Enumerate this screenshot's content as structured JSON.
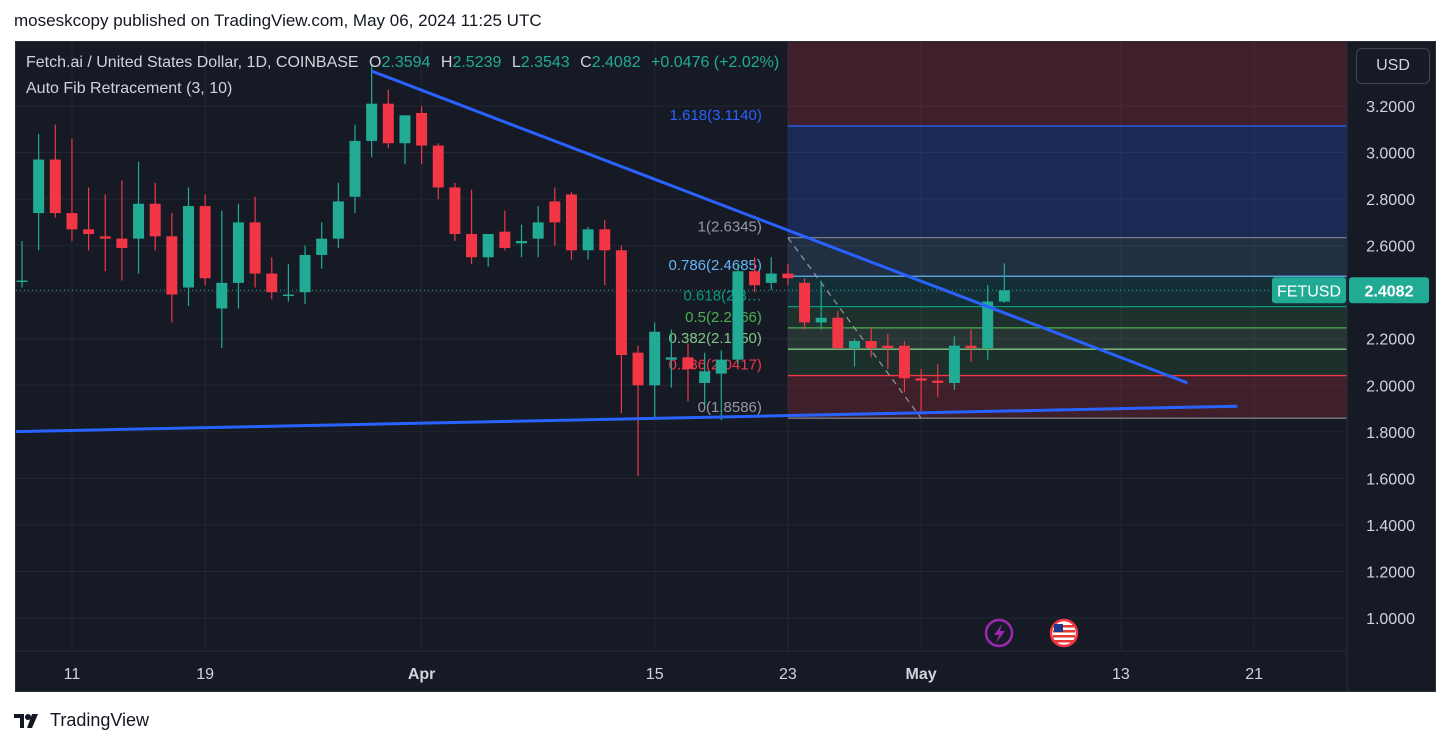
{
  "publish_line": "moseskcopy published on TradingView.com, May 06, 2024 11:25 UTC",
  "legend": {
    "title": "Fetch.ai / United States Dollar, 1D, COINBASE",
    "open_label": "O",
    "open": "2.3594",
    "high_label": "H",
    "high": "2.5239",
    "low_label": "L",
    "low": "2.3543",
    "close_label": "C",
    "close": "2.4082",
    "change": "+0.0476 (+2.02%)"
  },
  "indicator": "Auto Fib Retracement (3, 10)",
  "currency_button": "USD",
  "footer": {
    "brand": "TradingView"
  },
  "colors": {
    "background": "#161a25",
    "up": "#22ab94",
    "down": "#f23645",
    "trendline": "#2962ff",
    "grid": "#232733",
    "axis_text": "#d1d4dc"
  },
  "icons": [
    "lightning-icon",
    "us-flag-icon",
    "tradingview-logo-icon"
  ],
  "chart_data": {
    "type": "candlestick",
    "symbol": "FETUSD",
    "last_price": 2.4082,
    "y_ticks": [
      "3.2000",
      "3.0000",
      "2.8000",
      "2.6000",
      "2.4000",
      "2.2000",
      "2.0000",
      "1.8000",
      "1.6000",
      "1.4000",
      "1.2000",
      "1.0000"
    ],
    "ylim": [
      0.85,
      3.3
    ],
    "x_tick_labels": [
      {
        "label": "11",
        "date": "2024-03-11"
      },
      {
        "label": "19",
        "date": "2024-03-19"
      },
      {
        "label": "Apr",
        "date": "2024-04-01"
      },
      {
        "label": "15",
        "date": "2024-04-15"
      },
      {
        "label": "23",
        "date": "2024-04-23"
      },
      {
        "label": "May",
        "date": "2024-05-01"
      },
      {
        "label": "13",
        "date": "2024-05-13"
      },
      {
        "label": "21",
        "date": "2024-05-21"
      }
    ],
    "x_start": "2024-03-08",
    "candles": [
      {
        "date": "2024-03-08",
        "o": 2.45,
        "h": 2.62,
        "l": 2.42,
        "c": 2.45
      },
      {
        "date": "2024-03-09",
        "o": 2.74,
        "h": 3.08,
        "l": 2.58,
        "c": 2.97
      },
      {
        "date": "2024-03-10",
        "o": 2.97,
        "h": 3.12,
        "l": 2.72,
        "c": 2.74
      },
      {
        "date": "2024-03-11",
        "o": 2.74,
        "h": 3.06,
        "l": 2.62,
        "c": 2.67
      },
      {
        "date": "2024-03-12",
        "o": 2.67,
        "h": 2.85,
        "l": 2.58,
        "c": 2.65
      },
      {
        "date": "2024-03-13",
        "o": 2.64,
        "h": 2.82,
        "l": 2.49,
        "c": 2.63
      },
      {
        "date": "2024-03-14",
        "o": 2.63,
        "h": 2.88,
        "l": 2.45,
        "c": 2.59
      },
      {
        "date": "2024-03-15",
        "o": 2.63,
        "h": 2.96,
        "l": 2.48,
        "c": 2.78
      },
      {
        "date": "2024-03-16",
        "o": 2.78,
        "h": 2.87,
        "l": 2.58,
        "c": 2.64
      },
      {
        "date": "2024-03-17",
        "o": 2.64,
        "h": 2.74,
        "l": 2.27,
        "c": 2.39
      },
      {
        "date": "2024-03-18",
        "o": 2.42,
        "h": 2.85,
        "l": 2.34,
        "c": 2.77
      },
      {
        "date": "2024-03-19",
        "o": 2.77,
        "h": 2.82,
        "l": 2.43,
        "c": 2.46
      },
      {
        "date": "2024-03-20",
        "o": 2.33,
        "h": 2.75,
        "l": 2.16,
        "c": 2.44
      },
      {
        "date": "2024-03-21",
        "o": 2.44,
        "h": 2.78,
        "l": 2.33,
        "c": 2.7
      },
      {
        "date": "2024-03-22",
        "o": 2.7,
        "h": 2.81,
        "l": 2.42,
        "c": 2.48
      },
      {
        "date": "2024-03-23",
        "o": 2.48,
        "h": 2.55,
        "l": 2.37,
        "c": 2.4
      },
      {
        "date": "2024-03-24",
        "o": 2.39,
        "h": 2.52,
        "l": 2.36,
        "c": 2.39
      },
      {
        "date": "2024-03-25",
        "o": 2.4,
        "h": 2.6,
        "l": 2.35,
        "c": 2.56
      },
      {
        "date": "2024-03-26",
        "o": 2.56,
        "h": 2.7,
        "l": 2.5,
        "c": 2.63
      },
      {
        "date": "2024-03-27",
        "o": 2.63,
        "h": 2.87,
        "l": 2.59,
        "c": 2.79
      },
      {
        "date": "2024-03-28",
        "o": 2.81,
        "h": 3.12,
        "l": 2.74,
        "c": 3.05
      },
      {
        "date": "2024-03-29",
        "o": 3.05,
        "h": 3.38,
        "l": 2.98,
        "c": 3.21
      },
      {
        "date": "2024-03-30",
        "o": 3.21,
        "h": 3.27,
        "l": 3.02,
        "c": 3.04
      },
      {
        "date": "2024-03-31",
        "o": 3.04,
        "h": 3.16,
        "l": 2.95,
        "c": 3.16
      },
      {
        "date": "2024-04-01",
        "o": 3.17,
        "h": 3.2,
        "l": 2.95,
        "c": 3.03
      },
      {
        "date": "2024-04-02",
        "o": 3.03,
        "h": 3.04,
        "l": 2.8,
        "c": 2.85
      },
      {
        "date": "2024-04-03",
        "o": 2.85,
        "h": 2.87,
        "l": 2.62,
        "c": 2.65
      },
      {
        "date": "2024-04-04",
        "o": 2.65,
        "h": 2.84,
        "l": 2.52,
        "c": 2.55
      },
      {
        "date": "2024-04-05",
        "o": 2.55,
        "h": 2.65,
        "l": 2.51,
        "c": 2.65
      },
      {
        "date": "2024-04-06",
        "o": 2.66,
        "h": 2.75,
        "l": 2.58,
        "c": 2.59
      },
      {
        "date": "2024-04-07",
        "o": 2.61,
        "h": 2.69,
        "l": 2.55,
        "c": 2.62
      },
      {
        "date": "2024-04-08",
        "o": 2.63,
        "h": 2.77,
        "l": 2.55,
        "c": 2.7
      },
      {
        "date": "2024-04-09",
        "o": 2.79,
        "h": 2.85,
        "l": 2.6,
        "c": 2.7
      },
      {
        "date": "2024-04-10",
        "o": 2.82,
        "h": 2.83,
        "l": 2.54,
        "c": 2.58
      },
      {
        "date": "2024-04-11",
        "o": 2.58,
        "h": 2.68,
        "l": 2.54,
        "c": 2.67
      },
      {
        "date": "2024-04-12",
        "o": 2.67,
        "h": 2.71,
        "l": 2.43,
        "c": 2.58
      },
      {
        "date": "2024-04-13",
        "o": 2.58,
        "h": 2.6,
        "l": 1.88,
        "c": 2.13
      },
      {
        "date": "2024-04-14",
        "o": 2.14,
        "h": 2.17,
        "l": 1.61,
        "c": 2.0
      },
      {
        "date": "2024-04-15",
        "o": 2.0,
        "h": 2.27,
        "l": 1.86,
        "c": 2.23
      },
      {
        "date": "2024-04-16",
        "o": 2.11,
        "h": 2.24,
        "l": 1.99,
        "c": 2.12
      },
      {
        "date": "2024-04-17",
        "o": 2.12,
        "h": 2.18,
        "l": 1.93,
        "c": 2.07
      },
      {
        "date": "2024-04-18",
        "o": 2.01,
        "h": 2.14,
        "l": 1.91,
        "c": 2.06
      },
      {
        "date": "2024-04-19",
        "o": 2.05,
        "h": 2.15,
        "l": 1.85,
        "c": 2.11
      },
      {
        "date": "2024-04-20",
        "o": 2.11,
        "h": 2.52,
        "l": 2.09,
        "c": 2.49
      },
      {
        "date": "2024-04-21",
        "o": 2.49,
        "h": 2.55,
        "l": 2.4,
        "c": 2.43
      },
      {
        "date": "2024-04-22",
        "o": 2.44,
        "h": 2.55,
        "l": 2.41,
        "c": 2.48
      },
      {
        "date": "2024-04-23",
        "o": 2.48,
        "h": 2.52,
        "l": 2.43,
        "c": 2.46
      },
      {
        "date": "2024-04-24",
        "o": 2.44,
        "h": 2.46,
        "l": 2.24,
        "c": 2.27
      },
      {
        "date": "2024-04-25",
        "o": 2.27,
        "h": 2.45,
        "l": 2.24,
        "c": 2.29
      },
      {
        "date": "2024-04-26",
        "o": 2.29,
        "h": 2.32,
        "l": 2.15,
        "c": 2.16
      },
      {
        "date": "2024-04-27",
        "o": 2.16,
        "h": 2.2,
        "l": 2.08,
        "c": 2.19
      },
      {
        "date": "2024-04-28",
        "o": 2.19,
        "h": 2.25,
        "l": 2.12,
        "c": 2.16
      },
      {
        "date": "2024-04-29",
        "o": 2.17,
        "h": 2.22,
        "l": 2.07,
        "c": 2.16
      },
      {
        "date": "2024-04-30",
        "o": 2.17,
        "h": 2.19,
        "l": 1.97,
        "c": 2.03
      },
      {
        "date": "2024-05-01",
        "o": 2.03,
        "h": 2.07,
        "l": 1.88,
        "c": 2.02
      },
      {
        "date": "2024-05-02",
        "o": 2.02,
        "h": 2.09,
        "l": 1.95,
        "c": 2.01
      },
      {
        "date": "2024-05-03",
        "o": 2.01,
        "h": 2.21,
        "l": 1.98,
        "c": 2.17
      },
      {
        "date": "2024-05-04",
        "o": 2.17,
        "h": 2.24,
        "l": 2.1,
        "c": 2.16
      },
      {
        "date": "2024-05-05",
        "o": 2.16,
        "h": 2.43,
        "l": 2.11,
        "c": 2.36
      },
      {
        "date": "2024-05-06",
        "o": 2.3594,
        "h": 2.5239,
        "l": 2.3543,
        "c": 2.4082
      }
    ],
    "fib_levels": [
      {
        "label": "1.618(3.1140)",
        "ratio": 1.618,
        "price": 3.114,
        "color": "#2962ff",
        "text_color": "#2962ff"
      },
      {
        "label": "1(2.6345)",
        "ratio": 1,
        "price": 2.6345,
        "color": "#787b86",
        "text_color": "#9598a1"
      },
      {
        "label": "0.786(2.4685)",
        "ratio": 0.786,
        "price": 2.4685,
        "color": "#64b5f6",
        "text_color": "#64b5f6"
      },
      {
        "label": "0.618(2.3…",
        "ratio": 0.618,
        "price": 2.338,
        "color": "#089981",
        "text_color": "#089981"
      },
      {
        "label": "0.5(2.2466)",
        "ratio": 0.5,
        "price": 2.2466,
        "color": "#4caf50",
        "text_color": "#4caf50"
      },
      {
        "label": "0.382(2.1550)",
        "ratio": 0.382,
        "price": 2.155,
        "color": "#81c784",
        "text_color": "#81c784"
      },
      {
        "label": "0.236(2.0417)",
        "ratio": 0.236,
        "price": 2.0417,
        "color": "#f23645",
        "text_color": "#f23645"
      },
      {
        "label": "0(1.8586)",
        "ratio": 0,
        "price": 1.8586,
        "color": "#787b86",
        "text_color": "#9598a1"
      }
    ],
    "fib_start_date": "2024-04-23",
    "fib_end_date": "2024-05-21",
    "trendlines": [
      {
        "name": "descending",
        "from": {
          "date": "2024-03-29",
          "price": 3.35
        },
        "to": {
          "date": "2024-05-17",
          "price": 2.01
        }
      },
      {
        "name": "ascending-support",
        "from": {
          "date": "2024-03-07",
          "price": 1.8
        },
        "to": {
          "date": "2024-05-20",
          "price": 1.91
        }
      }
    ],
    "grid": true
  }
}
